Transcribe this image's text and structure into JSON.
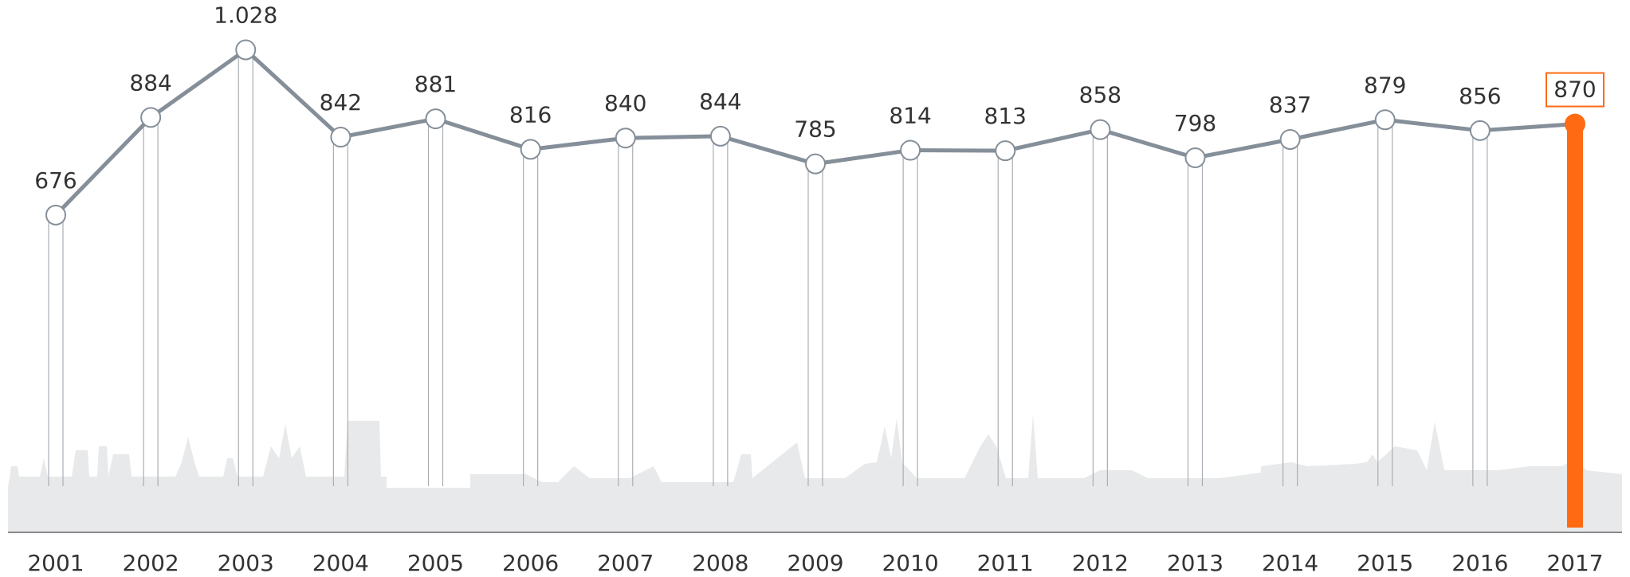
{
  "chart_data": {
    "type": "line",
    "categories": [
      "2001",
      "2002",
      "2003",
      "2004",
      "2005",
      "2006",
      "2007",
      "2008",
      "2009",
      "2010",
      "2011",
      "2012",
      "2013",
      "2014",
      "2015",
      "2016",
      "2017"
    ],
    "series": [
      {
        "color": "#858f99",
        "values": [
          676,
          884,
          1028,
          842,
          881,
          816,
          840,
          844,
          785,
          814,
          813,
          858,
          798,
          837,
          879,
          856,
          870
        ],
        "value_labels": [
          "676",
          "884",
          "1.028",
          "842",
          "881",
          "816",
          "840",
          "844",
          "785",
          "814",
          "813",
          "858",
          "798",
          "837",
          "879",
          "856",
          "870"
        ]
      }
    ],
    "highlight_index": 16,
    "highlight_color": "#ff6a13"
  }
}
